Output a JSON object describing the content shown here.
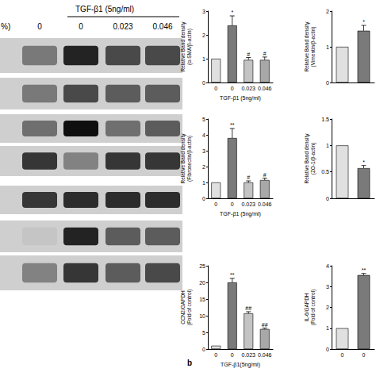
{
  "blot": {
    "title": "TGF-β1 (5ng/ml)",
    "unit_label": "%)",
    "lane_labels": [
      "0",
      "0",
      "0.023",
      "0.046"
    ],
    "band_intensity": [
      [
        0.45,
        0.9,
        0.7,
        0.7
      ],
      [
        0.45,
        0.7,
        0.6,
        0.6
      ],
      [
        0.5,
        1.0,
        0.5,
        0.6
      ],
      [
        0.8,
        0.4,
        0.8,
        0.8
      ],
      [
        0.8,
        0.85,
        0.85,
        0.85
      ],
      [
        0.05,
        0.9,
        0.6,
        0.6
      ],
      [
        0.4,
        0.8,
        0.6,
        0.7
      ]
    ]
  },
  "panel_label": "b",
  "chart_data": [
    {
      "type": "bar",
      "categories": [
        "0",
        "0",
        "0.023",
        "0.046"
      ],
      "values": [
        1,
        2.4,
        0.95,
        0.95
      ],
      "errors": [
        0,
        0.4,
        0.1,
        0.12
      ],
      "annotations": [
        null,
        "*",
        "#",
        "#"
      ],
      "ylabel": "Relative Band density\n(α-SMA/β-actin)",
      "xlabel": "TGF-β1 (5ng/ml)",
      "ylim": [
        0,
        3
      ],
      "yticks": [
        0,
        1,
        2,
        3
      ],
      "colors": [
        "#e0e0e0",
        "#7a7a7a",
        "#c4c4c4",
        "#a8a8a8"
      ],
      "grid": false
    },
    {
      "type": "bar",
      "categories": [
        null,
        null
      ],
      "values": [
        1,
        1.45
      ],
      "errors": [
        0,
        0.15
      ],
      "annotations": [
        null,
        "*"
      ],
      "ylabel": "Relative Band density\n(Vimentin/β-actin)",
      "ylim": [
        0,
        2
      ],
      "yticks": [
        0,
        1,
        2
      ],
      "colors": [
        "#e0e0e0",
        "#7a7a7a"
      ],
      "grid": false
    },
    {
      "type": "bar",
      "categories": [
        "0",
        "0",
        "0.023",
        "0.046"
      ],
      "values": [
        1,
        3.8,
        1.0,
        1.15
      ],
      "errors": [
        0,
        0.6,
        0.1,
        0.12
      ],
      "annotations": [
        null,
        "**",
        "#",
        "#"
      ],
      "ylabel": "Relative Band density\n(Fibronectin/β-actin)",
      "xlabel": "TGF-β1 (5ng/ml)",
      "ylim": [
        0,
        5
      ],
      "yticks": [
        0,
        1,
        2,
        3,
        4,
        5
      ],
      "colors": [
        "#e0e0e0",
        "#7a7a7a",
        "#c4c4c4",
        "#a8a8a8"
      ],
      "grid": false
    },
    {
      "type": "bar",
      "categories": [
        null,
        null
      ],
      "values": [
        1,
        0.57
      ],
      "errors": [
        0,
        0.05
      ],
      "annotations": [
        null,
        "*"
      ],
      "ylabel": "Relative Band density\n(ZO-1/β-actin)",
      "ylim": [
        0,
        1.5
      ],
      "yticks": [
        0,
        0.5,
        1,
        1.5
      ],
      "colors": [
        "#e0e0e0",
        "#7a7a7a"
      ],
      "grid": false
    },
    {
      "type": "bar",
      "categories": [
        "0",
        "0",
        "0.023",
        "0.046"
      ],
      "values": [
        1,
        20,
        10.7,
        6
      ],
      "errors": [
        0,
        1.2,
        0.5,
        0.3
      ],
      "annotations": [
        null,
        "**",
        "##",
        "##"
      ],
      "ylabel": "CCN2/GAPDH\n(Fold of control)",
      "xlabel": "TGF-β1(5ng/ml)",
      "ylim": [
        0,
        25
      ],
      "yticks": [
        0,
        5,
        10,
        15,
        20,
        25
      ],
      "colors": [
        "#e0e0e0",
        "#7a7a7a",
        "#c4c4c4",
        "#a8a8a8"
      ],
      "grid": false
    },
    {
      "type": "bar",
      "categories": [
        "0",
        "0"
      ],
      "values": [
        1,
        3.55
      ],
      "errors": [
        0,
        0.08
      ],
      "annotations": [
        null,
        "**"
      ],
      "ylabel": "IL-6/GAPDH\n(Fold of control)",
      "ylim": [
        0,
        4
      ],
      "yticks": [
        0,
        1,
        2,
        3,
        4
      ],
      "colors": [
        "#e0e0e0",
        "#7a7a7a"
      ],
      "grid": false
    }
  ]
}
